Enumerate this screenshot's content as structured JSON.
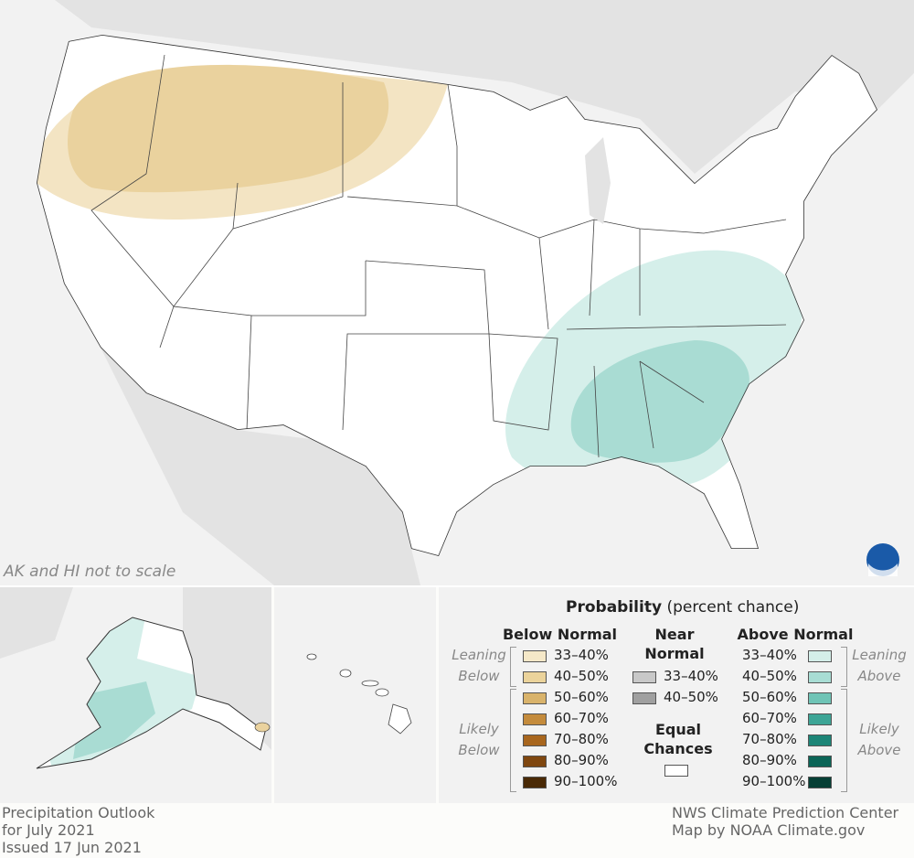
{
  "map": {
    "note": "AK and HI not to scale"
  },
  "legend": {
    "title": "Probability",
    "subtitle": "(percent chance)",
    "below": {
      "heading": "Below Normal",
      "groups": [
        {
          "label": "Leaning Below",
          "items": [
            {
              "label": "33–40%",
              "color": "#f5e8c8"
            },
            {
              "label": "40–50%",
              "color": "#ebd39b"
            }
          ]
        },
        {
          "label": "Likely Below",
          "items": [
            {
              "label": "50–60%",
              "color": "#d9b36b"
            },
            {
              "label": "60–70%",
              "color": "#c48b3c"
            },
            {
              "label": "70–80%",
              "color": "#a8661e"
            },
            {
              "label": "80–90%",
              "color": "#7f4710"
            },
            {
              "label": "90–100%",
              "color": "#4a2a06"
            }
          ]
        }
      ]
    },
    "near": {
      "heading": "Near Normal",
      "items": [
        {
          "label": "33–40%",
          "color": "#c8c8c8"
        },
        {
          "label": "40–50%",
          "color": "#a0a0a0"
        }
      ]
    },
    "equal": {
      "label": "Equal Chances",
      "color": "#ffffff"
    },
    "above": {
      "heading": "Above Normal",
      "groups": [
        {
          "label": "Leaning Above",
          "items": [
            {
              "label": "33–40%",
              "color": "#d4eee9"
            },
            {
              "label": "40–50%",
              "color": "#a8ddd4"
            }
          ]
        },
        {
          "label": "Likely Above",
          "items": [
            {
              "label": "50–60%",
              "color": "#6fc4b6"
            },
            {
              "label": "60–70%",
              "color": "#3da596"
            },
            {
              "label": "70–80%",
              "color": "#1d8577"
            },
            {
              "label": "80–90%",
              "color": "#0b6557"
            },
            {
              "label": "90–100%",
              "color": "#063f35"
            }
          ]
        }
      ]
    }
  },
  "footer": {
    "left": [
      "Precipitation Outlook",
      "for July 2021",
      "Issued 17 Jun 2021"
    ],
    "right": [
      "NWS Climate Prediction Center",
      "Map by NOAA Climate.gov"
    ]
  }
}
